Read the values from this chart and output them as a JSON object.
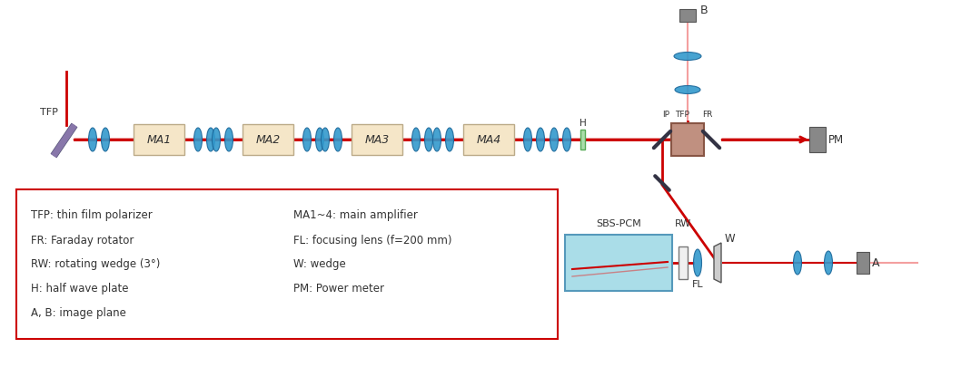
{
  "bg_color": "#ffffff",
  "beam_color": "#cc0000",
  "beam_faint": "#f4a0a0",
  "lens_color": "#3399cc",
  "lens_edge": "#1a6699",
  "ma_box_color": "#f5e6c8",
  "ma_box_edge": "#bbaa88",
  "sbs_color": "#aadde8",
  "sbs_edge": "#5599bb",
  "mirror_color": "#333344",
  "gray_color": "#888888",
  "gray_edge": "#555555",
  "pbs_color": "#c09080",
  "pbs_edge": "#885544",
  "wplate_color": "#aaddaa",
  "wplate_edge": "#55aa55",
  "legend_edge": "#cc0000",
  "text_color": "#333333",
  "tfp_color": "#8877aa",
  "tfp_edge": "#555577",
  "white_elem": "#f0f0f0",
  "wedge_color": "#cccccc",
  "legend_lines": [
    [
      "TFP: thin film polarizer",
      "MA1~4: main amplifier"
    ],
    [
      "FR: Faraday rotator",
      "FL: focusing lens (f=200 mm)"
    ],
    [
      "RW: rotating wedge (3°)",
      "W: wedge"
    ],
    [
      "H: half wave plate",
      "PM: Power meter"
    ],
    [
      "A, B: image plane",
      ""
    ]
  ],
  "ma_labels": [
    "MA1",
    "MA2",
    "MA3",
    "MA4"
  ],
  "fig_w": 10.58,
  "fig_h": 4.06,
  "dpi": 100,
  "xlim": [
    0,
    1058
  ],
  "ylim": [
    0,
    406
  ]
}
